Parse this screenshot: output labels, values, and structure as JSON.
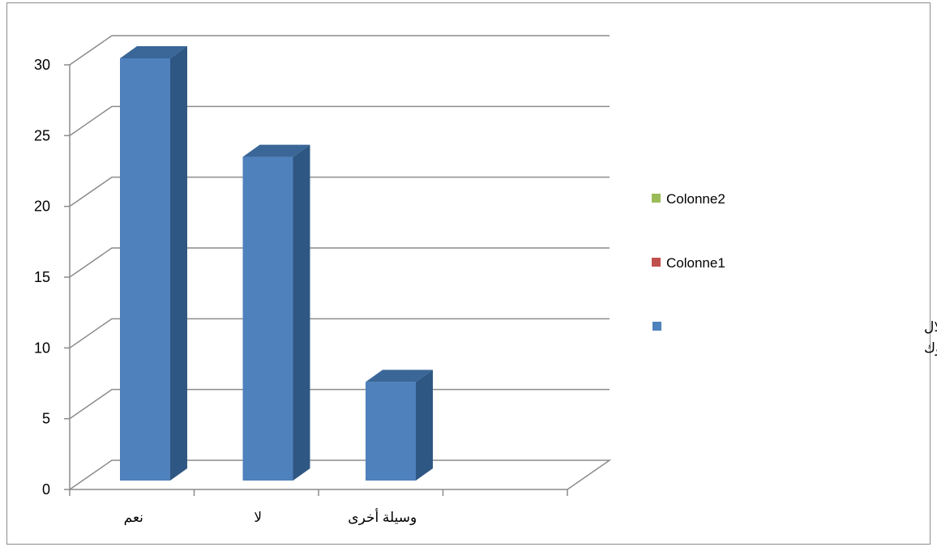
{
  "chart_data": {
    "type": "bar",
    "title": "",
    "xlabel": "",
    "ylabel": "",
    "categories": [
      "نعم",
      "لا",
      "وسيلة أخرى"
    ],
    "series": [
      {
        "name": "هل علمت بعملية الإحصاء من خلال صفحة البلدية على الفايسبوك",
        "name_lines": [
          "هل علمت بعملية الإحصاء من خلال",
          "صفحة البلدية على الفايسبوك"
        ],
        "values": [
          30,
          23,
          7
        ],
        "color": "#4F81BD"
      },
      {
        "name": "Colonne1",
        "values": [
          0,
          0,
          0
        ],
        "color": "#C0504D"
      },
      {
        "name": "Colonne2",
        "values": [
          0,
          0,
          0
        ],
        "color": "#9BBB59"
      }
    ],
    "yticks": [
      0,
      5,
      10,
      15,
      20,
      25,
      30
    ],
    "ylim": [
      0,
      30
    ],
    "grid": true,
    "legend_position": "right",
    "style": "3d-column"
  }
}
